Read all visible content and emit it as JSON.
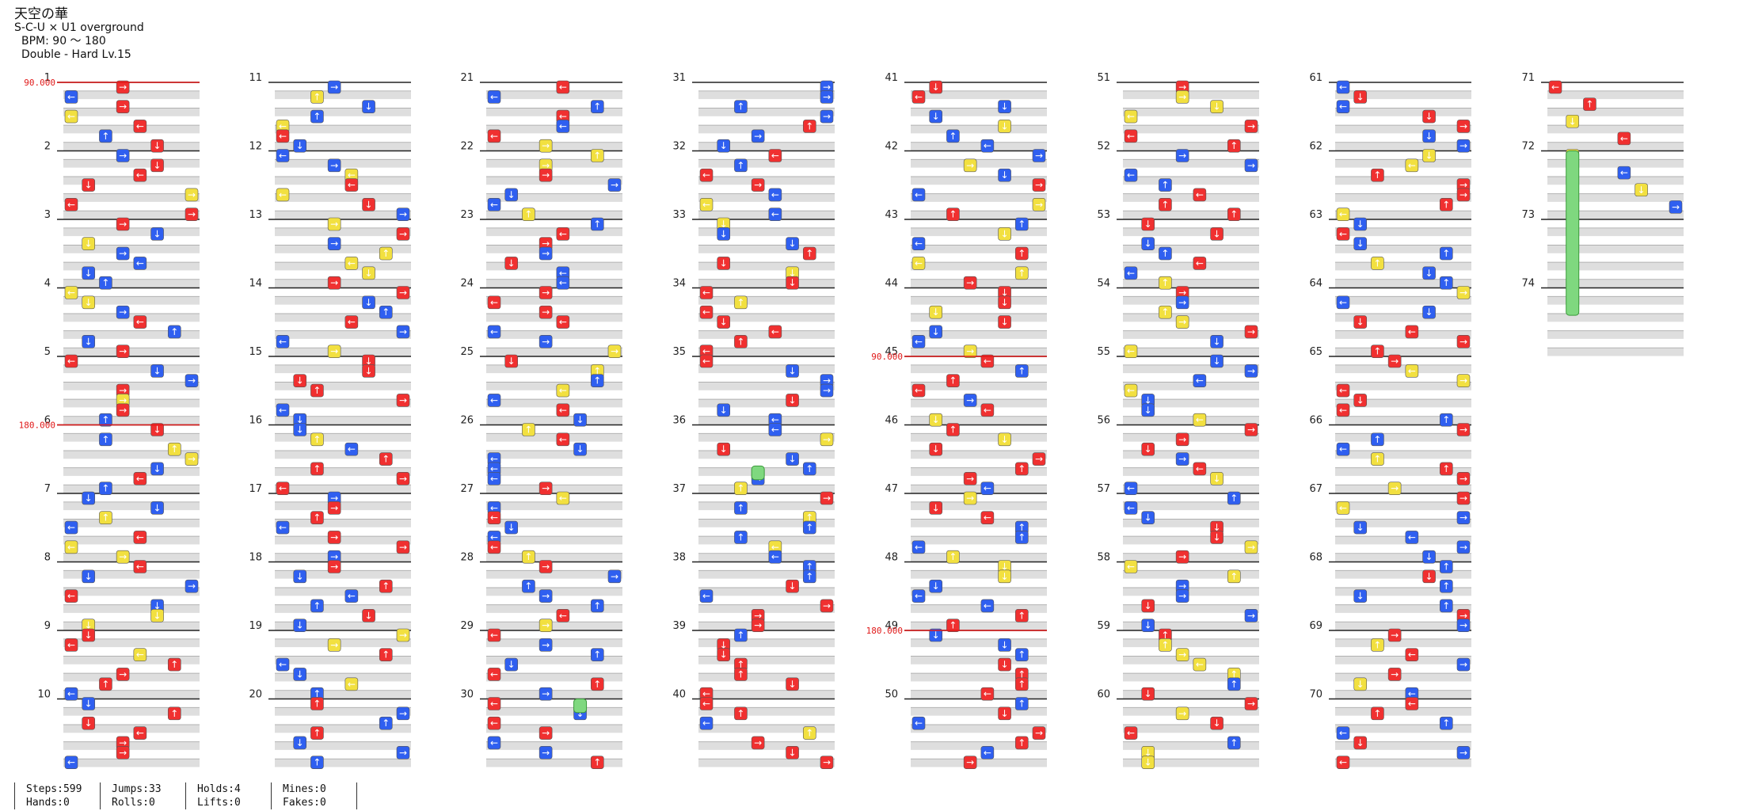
{
  "song": {
    "title": "天空の華",
    "artist": "S-C-U × U1 overground",
    "bpm": "BPM: 90 ～ 180",
    "chart": "Double - Hard  Lv.15"
  },
  "bpm_markers": [
    {
      "measure": 1,
      "label": "90.000"
    },
    {
      "measure": 6,
      "label": "180.000"
    },
    {
      "measure": 45,
      "label": "90.000"
    },
    {
      "measure": 49,
      "label": "180.000"
    }
  ],
  "measures": [
    1,
    2,
    3,
    4,
    5,
    6,
    7,
    8,
    9,
    10,
    11,
    12,
    13,
    14,
    15,
    16,
    17,
    18,
    19,
    20,
    21,
    22,
    23,
    24,
    25,
    26,
    27,
    28,
    29,
    30,
    31,
    32,
    33,
    34,
    35,
    36,
    37,
    38,
    39,
    40,
    41,
    42,
    43,
    44,
    45,
    46,
    47,
    48,
    49,
    50,
    51,
    52,
    53,
    54,
    55,
    56,
    57,
    58,
    59,
    60,
    61,
    62,
    63,
    64,
    65,
    66,
    67,
    68,
    69,
    70,
    71,
    72,
    73,
    74
  ],
  "stats": {
    "steps": "Steps:599",
    "hands": "Hands:0",
    "jumps": "Jumps:33",
    "rolls": "Rolls:0",
    "holds": "Holds:4",
    "lifts": "Lifts:0",
    "mines": "Mines:0",
    "fakes": "Fakes:0"
  },
  "colors": {
    "quarter": "#f03030",
    "eighth": "#2f5ff0",
    "sixteenth": "#f2e040",
    "twelfth": "#a040e0",
    "twentyfourth": "#f08a30",
    "hold": "#7fd87f",
    "bpm_line": "#e01818"
  }
}
